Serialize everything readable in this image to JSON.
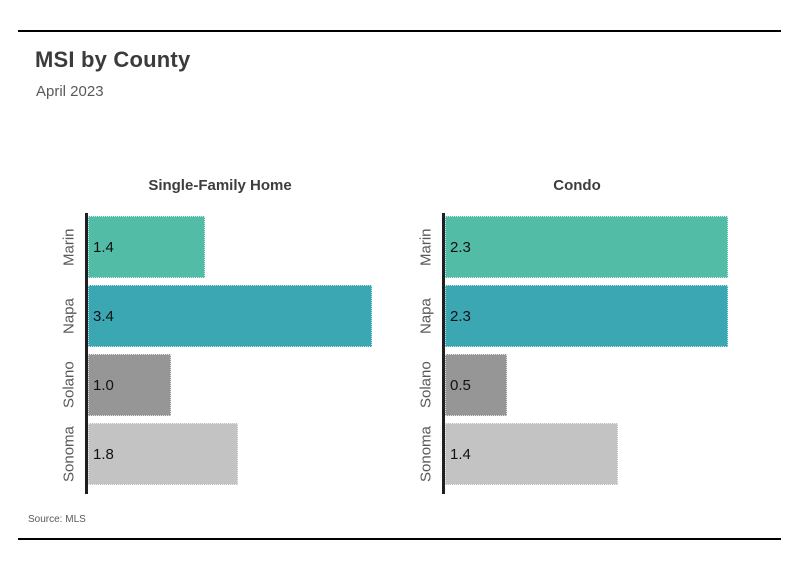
{
  "page": {
    "title": "MSI by County",
    "subtitle": "April 2023",
    "source": "Source: MLS",
    "background_color": "#ffffff",
    "rule_color": "#000000",
    "axis_color": "#1f1f1f"
  },
  "colors": {
    "marin": "#52bca6",
    "napa": "#3aa7b3",
    "solano": "#969696",
    "sonoma": "#c3c3c3"
  },
  "chart_data": [
    {
      "type": "bar",
      "orientation": "horizontal",
      "title": "Single-Family Home",
      "categories": [
        "Marin",
        "Napa",
        "Solano",
        "Sonoma"
      ],
      "values": [
        1.4,
        3.4,
        1.0,
        1.8
      ],
      "value_labels": [
        "1.4",
        "3.4",
        "1.0",
        "1.8"
      ],
      "bar_colors": [
        "#52bca6",
        "#3aa7b3",
        "#969696",
        "#c3c3c3"
      ],
      "xlim": [
        0,
        3.56
      ],
      "grid": false,
      "legend": "none",
      "value_label_position": "inside-left"
    },
    {
      "type": "bar",
      "orientation": "horizontal",
      "title": "Condo",
      "categories": [
        "Marin",
        "Napa",
        "Solano",
        "Sonoma"
      ],
      "values": [
        2.3,
        2.3,
        0.5,
        1.4
      ],
      "value_labels": [
        "2.3",
        "2.3",
        "0.5",
        "1.4"
      ],
      "bar_colors": [
        "#52bca6",
        "#3aa7b3",
        "#969696",
        "#c3c3c3"
      ],
      "xlim": [
        0,
        2.41
      ],
      "grid": false,
      "legend": "none",
      "value_label_position": "inside-left"
    }
  ]
}
